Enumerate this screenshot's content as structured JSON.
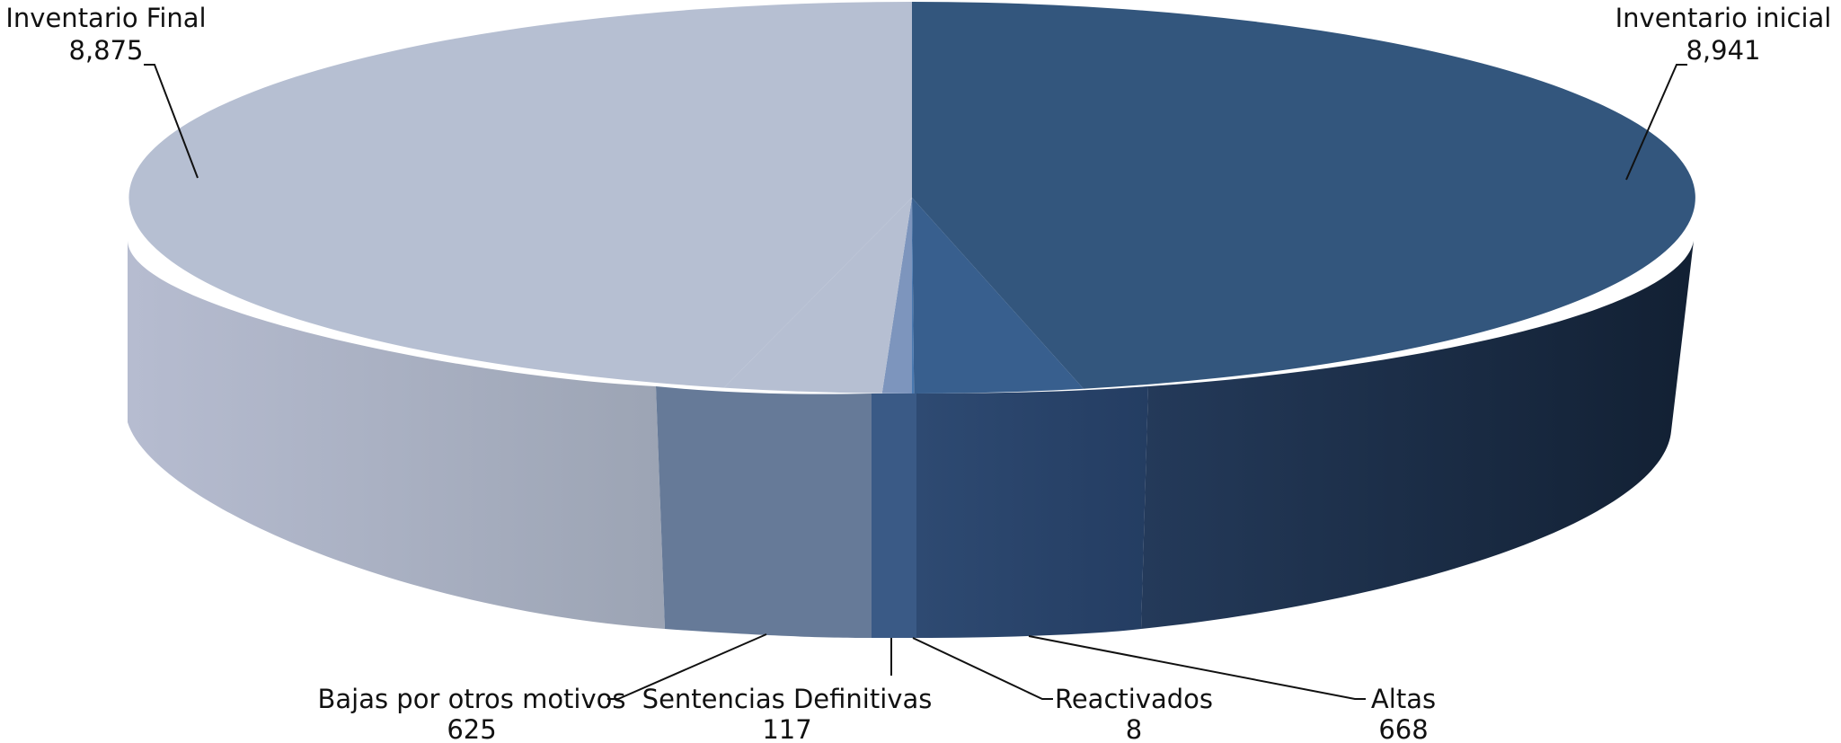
{
  "chart_data": {
    "type": "pie",
    "style": "3d",
    "categories": [
      "Inventario inicial",
      "Altas",
      "Reactivados",
      "Sentencias Definitivas",
      "Bajas por otros motivos",
      "Inventario Final"
    ],
    "values": [
      8941,
      668,
      8,
      117,
      625,
      8875
    ],
    "value_labels": [
      "8,941",
      "668",
      "8",
      "117",
      "625",
      "8,875"
    ],
    "colors": [
      "#33567d",
      "#385f8e",
      "#4a79b0",
      "#7d95bd",
      "#b6bfd2",
      "#b6bfd2"
    ],
    "title": "",
    "legend": "none"
  }
}
